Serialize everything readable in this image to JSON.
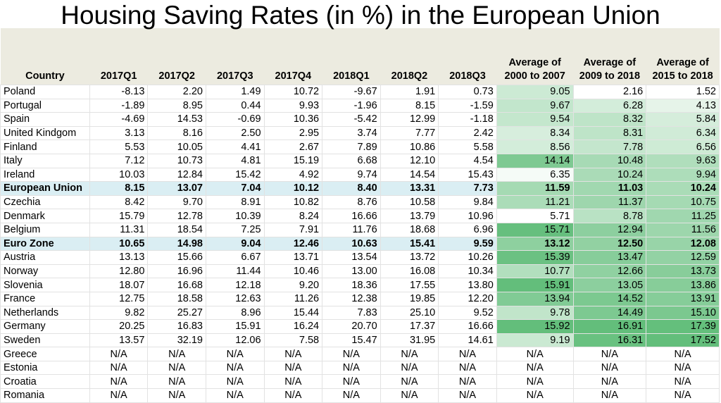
{
  "title": "Housing Saving Rates (in %) in the European Union",
  "colors": {
    "header_bg": "#ecebe0",
    "highlight_row": "#daeef3",
    "scale_low": "#ffffff",
    "scale_high": "#63be7b"
  },
  "columns": [
    "Country",
    "2017Q1",
    "2017Q2",
    "2017Q3",
    "2017Q4",
    "2018Q1",
    "2018Q2",
    "2018Q3",
    "Average of\n2000 to 2007",
    "Average of\n2009 to 2018",
    "Average of\n2015 to 2018"
  ],
  "rows": [
    {
      "country": "Poland",
      "values": [
        "-8.13",
        "2.20",
        "1.49",
        "10.72",
        "-9.67",
        "1.91",
        "0.73",
        "9.05",
        "2.16",
        "1.52"
      ]
    },
    {
      "country": "Portugal",
      "values": [
        "-1.89",
        "8.95",
        "0.44",
        "9.93",
        "-1.96",
        "8.15",
        "-1.59",
        "9.67",
        "6.28",
        "4.13"
      ]
    },
    {
      "country": "Spain",
      "values": [
        "-4.69",
        "14.53",
        "-0.69",
        "10.36",
        "-5.42",
        "12.99",
        "-1.18",
        "9.54",
        "8.32",
        "5.84"
      ]
    },
    {
      "country": "United Kindgom",
      "values": [
        "3.13",
        "8.16",
        "2.50",
        "2.95",
        "3.74",
        "7.77",
        "2.42",
        "8.34",
        "8.31",
        "6.34"
      ]
    },
    {
      "country": "Finland",
      "values": [
        "5.53",
        "10.05",
        "4.41",
        "2.67",
        "7.89",
        "10.86",
        "5.58",
        "8.56",
        "7.78",
        "6.56"
      ]
    },
    {
      "country": "Italy",
      "values": [
        "7.12",
        "10.73",
        "4.81",
        "15.19",
        "6.68",
        "12.10",
        "4.54",
        "14.14",
        "10.48",
        "9.63"
      ]
    },
    {
      "country": "Ireland",
      "values": [
        "10.03",
        "12.84",
        "15.42",
        "4.92",
        "9.74",
        "14.54",
        "15.43",
        "6.35",
        "10.24",
        "9.94"
      ]
    },
    {
      "country": "European Union",
      "highlight": true,
      "values": [
        "8.15",
        "13.07",
        "7.04",
        "10.12",
        "8.40",
        "13.31",
        "7.73",
        "11.59",
        "11.03",
        "10.24"
      ]
    },
    {
      "country": "Czechia",
      "values": [
        "8.42",
        "9.70",
        "8.91",
        "10.82",
        "8.76",
        "10.58",
        "9.84",
        "11.21",
        "11.37",
        "10.75"
      ]
    },
    {
      "country": "Denmark",
      "values": [
        "15.79",
        "12.78",
        "10.39",
        "8.24",
        "16.66",
        "13.79",
        "10.96",
        "5.71",
        "8.78",
        "11.25"
      ]
    },
    {
      "country": "Belgium",
      "values": [
        "11.31",
        "18.54",
        "7.25",
        "7.91",
        "11.76",
        "18.68",
        "6.96",
        "15.71",
        "12.94",
        "11.56"
      ]
    },
    {
      "country": "Euro Zone",
      "highlight": true,
      "values": [
        "10.65",
        "14.98",
        "9.04",
        "12.46",
        "10.63",
        "15.41",
        "9.59",
        "13.12",
        "12.50",
        "12.08"
      ]
    },
    {
      "country": "Austria",
      "values": [
        "13.13",
        "15.66",
        "6.67",
        "13.71",
        "13.54",
        "13.72",
        "10.26",
        "15.39",
        "13.47",
        "12.59"
      ]
    },
    {
      "country": "Norway",
      "values": [
        "12.80",
        "16.96",
        "11.44",
        "10.46",
        "13.00",
        "16.08",
        "10.34",
        "10.77",
        "12.66",
        "13.73"
      ]
    },
    {
      "country": "Slovenia",
      "values": [
        "18.07",
        "16.68",
        "12.18",
        "9.20",
        "18.36",
        "17.55",
        "13.80",
        "15.91",
        "13.05",
        "13.86"
      ]
    },
    {
      "country": "France",
      "values": [
        "12.75",
        "18.58",
        "12.63",
        "11.26",
        "12.38",
        "19.85",
        "12.20",
        "13.94",
        "14.52",
        "13.91"
      ]
    },
    {
      "country": "Netherlands",
      "values": [
        "9.82",
        "25.27",
        "8.96",
        "15.44",
        "7.83",
        "25.10",
        "9.52",
        "9.78",
        "14.49",
        "15.10"
      ]
    },
    {
      "country": "Germany",
      "values": [
        "20.25",
        "16.83",
        "15.91",
        "16.24",
        "20.70",
        "17.37",
        "16.66",
        "15.92",
        "16.91",
        "17.39"
      ]
    },
    {
      "country": "Sweden",
      "values": [
        "13.57",
        "32.19",
        "12.06",
        "7.58",
        "15.47",
        "31.95",
        "14.61",
        "9.19",
        "16.31",
        "17.52"
      ]
    },
    {
      "country": "Greece",
      "values": [
        "N/A",
        "N/A",
        "N/A",
        "N/A",
        "N/A",
        "N/A",
        "N/A",
        "N/A",
        "N/A",
        "N/A"
      ]
    },
    {
      "country": "Estonia",
      "values": [
        "N/A",
        "N/A",
        "N/A",
        "N/A",
        "N/A",
        "N/A",
        "N/A",
        "N/A",
        "N/A",
        "N/A"
      ]
    },
    {
      "country": "Croatia",
      "values": [
        "N/A",
        "N/A",
        "N/A",
        "N/A",
        "N/A",
        "N/A",
        "N/A",
        "N/A",
        "N/A",
        "N/A"
      ]
    },
    {
      "country": "Romania",
      "values": [
        "N/A",
        "N/A",
        "N/A",
        "N/A",
        "N/A",
        "N/A",
        "N/A",
        "N/A",
        "N/A",
        "N/A"
      ]
    }
  ]
}
